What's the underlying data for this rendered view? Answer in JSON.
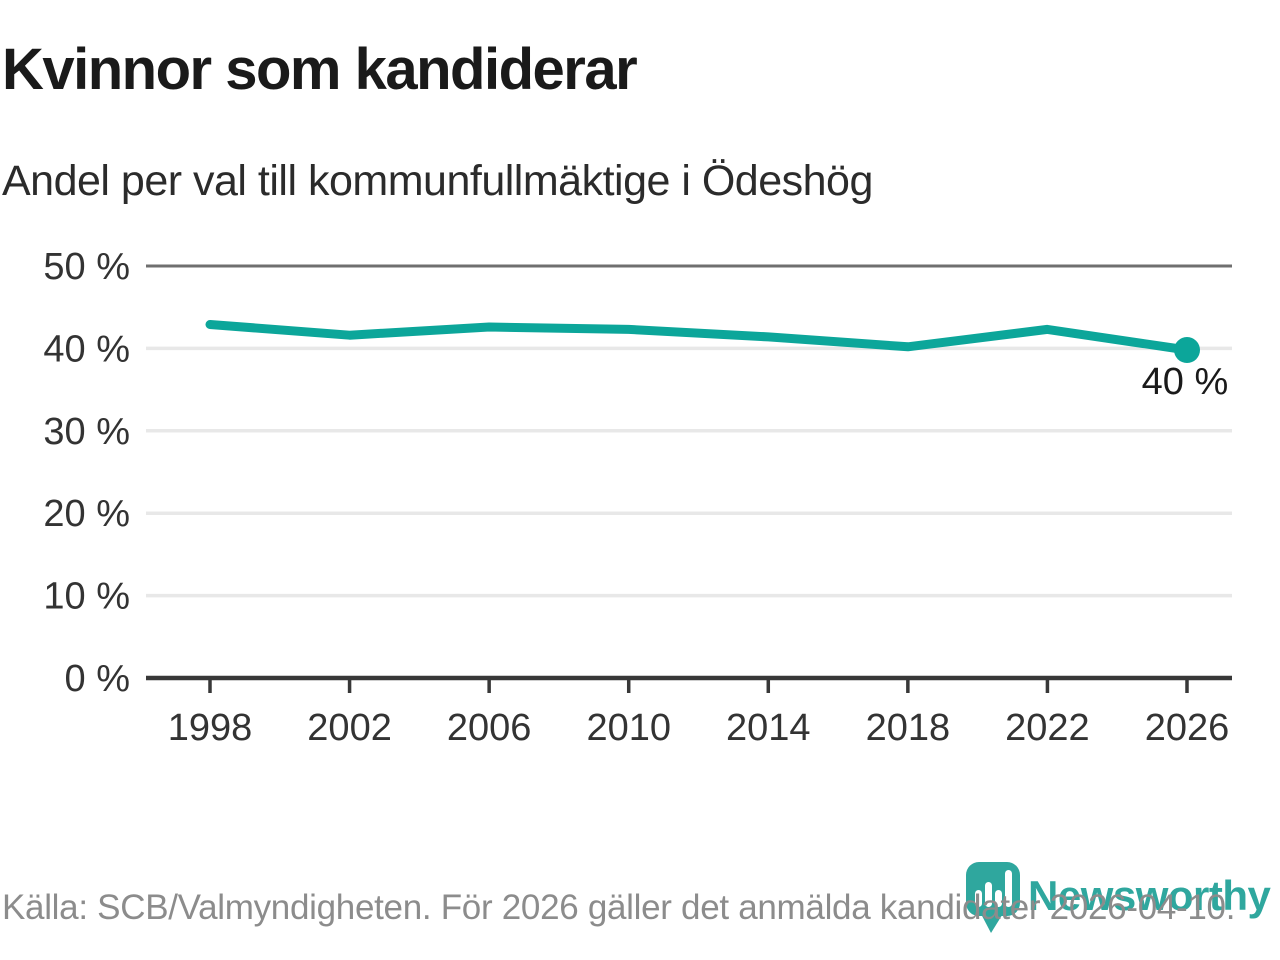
{
  "header": {
    "title": "Kvinnor som kandiderar",
    "subtitle": "Andel per val till kommunfullmäktige i Ödeshög"
  },
  "chart_data": {
    "type": "line",
    "categories": [
      "1998",
      "2002",
      "2006",
      "2010",
      "2014",
      "2018",
      "2022",
      "2026"
    ],
    "x": [
      1998,
      2002,
      2006,
      2010,
      2014,
      2018,
      2022,
      2026
    ],
    "series": [
      {
        "values": [
          42.9,
          41.6,
          42.6,
          42.3,
          41.4,
          40.2,
          42.3,
          39.8
        ]
      }
    ],
    "title": "Kvinnor som kandiderar",
    "subtitle": "Andel per val till kommunfullmäktige i Ödeshög",
    "xlabel": "",
    "ylabel": "",
    "ylim": [
      0,
      50
    ],
    "yticks": [
      {
        "value": 0,
        "label": "0 %"
      },
      {
        "value": 10,
        "label": "10 %"
      },
      {
        "value": 20,
        "label": "20 %"
      },
      {
        "value": 30,
        "label": "30 %"
      },
      {
        "value": 40,
        "label": "40 %"
      },
      {
        "value": 50,
        "label": "50 %"
      }
    ],
    "end_label": "40 %",
    "grid": "on",
    "legend": "none",
    "marker": "circle-on-last-point"
  },
  "footer": {
    "source": "Källa: SCB/Valmyndigheten. För 2026 gäller det anmälda kandidater 2026-04-10.",
    "brand": "Newsworthy"
  },
  "colors": {
    "accent": "#0ca69a",
    "logo_teal": "#2fa79e",
    "title_text": "#1a1a1a",
    "subtitle_text": "#2b2b2b",
    "tick_text": "#333333",
    "grid_light": "#e8e8e8",
    "grid_top": "#6f6f6f",
    "axis_dark": "#383838",
    "source_text": "#8c8c8c"
  }
}
